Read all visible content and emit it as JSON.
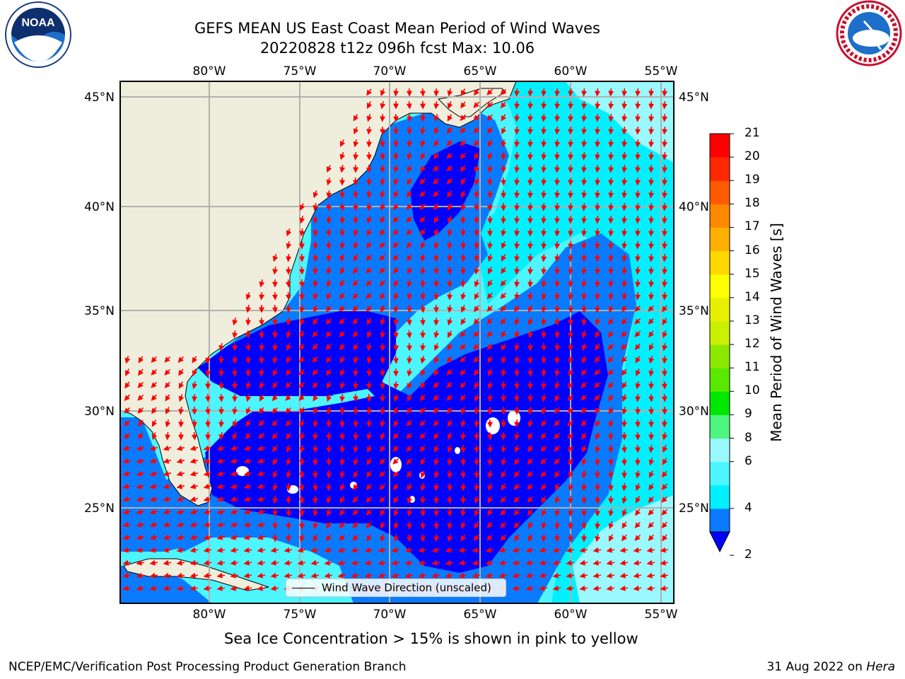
{
  "header": {
    "title_line1": "GEFS MEAN US East Coast Mean Period of Wind Waves",
    "title_line2": "20220828 t12z 096h fcst   Max: 10.06"
  },
  "logos": {
    "noaa_text": "NOAA"
  },
  "map": {
    "lon_labels": [
      "80°W",
      "75°W",
      "70°W",
      "65°W",
      "60°W",
      "55°W"
    ],
    "lat_labels": [
      "45°N",
      "40°N",
      "35°N",
      "30°N",
      "25°N"
    ],
    "legend_text": "Wind Wave Direction (unscaled)",
    "ocean_colors": {
      "lt2": "#0000ff",
      "b2_4": "#0a7bff",
      "b4_6": "#00f0ff",
      "b6_8": "#4df6ff",
      "b8_9": "#99f9ff"
    },
    "land_color": "#efeedc",
    "arrow_color": "#ff0000"
  },
  "colorbar": {
    "label": "Mean Period of Wind Waves [s]",
    "ticks": [
      "21",
      "20",
      "19",
      "18",
      "17",
      "16",
      "15",
      "14",
      "13",
      "12",
      "11",
      "10",
      "9",
      "8",
      "6",
      "4",
      "2"
    ],
    "colors": [
      "#0000ff",
      "#0a7bff",
      "#00f0ff",
      "#4df6ff",
      "#99f9ff",
      "#4df67e",
      "#00e800",
      "#59e800",
      "#8de800",
      "#c9f000",
      "#e8f000",
      "#ffff00",
      "#ffd800",
      "#ffb000",
      "#ff8800",
      "#ff5a00",
      "#ff2800",
      "#ff0000"
    ]
  },
  "subtitle": "Sea Ice Concentration > 15% is shown in pink to yellow",
  "footer": {
    "left": "NCEP/EMC/Verification Post Processing Product Generation Branch",
    "right_prefix": "31 Aug 2022 on ",
    "right_host": "Hera"
  }
}
